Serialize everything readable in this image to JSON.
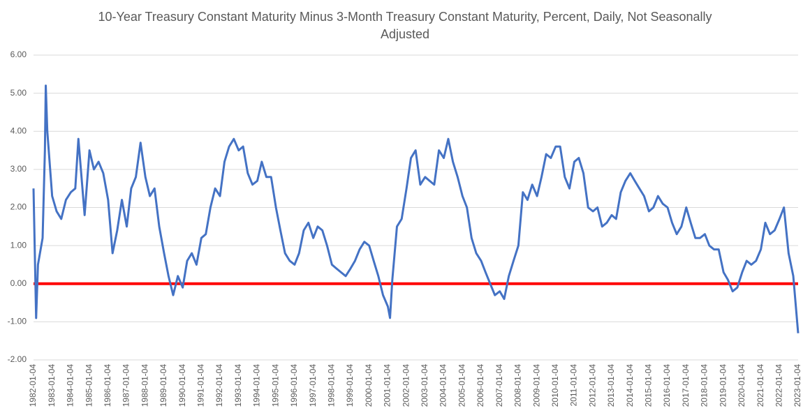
{
  "chart_data": {
    "type": "line",
    "title": "10-Year Treasury Constant Maturity Minus 3-Month Treasury Constant Maturity, Percent, Daily, Not Seasonally Adjusted",
    "x": [
      "1982-01-04",
      "1982-02-24",
      "1982-04-01",
      "1982-07-01",
      "1982-08-15",
      "1982-09-01",
      "1982-10-01",
      "1983-01-04",
      "1983-04-01",
      "1983-07-01",
      "1983-10-01",
      "1984-01-04",
      "1984-04-01",
      "1984-06-01",
      "1984-10-01",
      "1985-01-04",
      "1985-04-01",
      "1985-07-01",
      "1985-10-01",
      "1986-01-04",
      "1986-04-01",
      "1986-07-01",
      "1986-10-01",
      "1987-01-04",
      "1987-04-01",
      "1987-07-01",
      "1987-10-01",
      "1988-01-04",
      "1988-04-01",
      "1988-07-01",
      "1988-10-01",
      "1989-01-04",
      "1989-04-01",
      "1989-07-01",
      "1989-10-01",
      "1990-01-04",
      "1990-04-01",
      "1990-07-01",
      "1990-10-01",
      "1991-01-04",
      "1991-04-01",
      "1991-07-01",
      "1991-10-01",
      "1992-01-04",
      "1992-04-01",
      "1992-07-01",
      "1992-10-01",
      "1993-01-04",
      "1993-04-01",
      "1993-07-01",
      "1993-10-01",
      "1994-01-04",
      "1994-04-01",
      "1994-07-01",
      "1994-10-01",
      "1995-01-04",
      "1995-04-01",
      "1995-07-01",
      "1995-10-01",
      "1996-01-04",
      "1996-04-01",
      "1996-07-01",
      "1996-10-01",
      "1997-01-04",
      "1997-04-01",
      "1997-07-01",
      "1997-10-01",
      "1998-01-04",
      "1998-04-01",
      "1998-07-01",
      "1998-10-01",
      "1999-01-04",
      "1999-04-01",
      "1999-07-01",
      "1999-10-01",
      "2000-01-04",
      "2000-04-01",
      "2000-07-01",
      "2000-10-01",
      "2001-01-04",
      "2001-02-15",
      "2001-04-01",
      "2001-07-01",
      "2001-10-01",
      "2002-01-04",
      "2002-04-01",
      "2002-07-01",
      "2002-10-01",
      "2003-01-04",
      "2003-04-01",
      "2003-07-01",
      "2003-10-01",
      "2004-01-04",
      "2004-04-01",
      "2004-07-01",
      "2004-10-01",
      "2005-01-04",
      "2005-04-01",
      "2005-07-01",
      "2005-10-01",
      "2006-01-04",
      "2006-04-01",
      "2006-07-01",
      "2006-10-01",
      "2007-01-04",
      "2007-04-01",
      "2007-07-01",
      "2007-10-01",
      "2008-01-04",
      "2008-04-01",
      "2008-07-01",
      "2008-10-01",
      "2009-01-04",
      "2009-04-01",
      "2009-07-01",
      "2009-10-01",
      "2010-01-04",
      "2010-04-01",
      "2010-07-01",
      "2010-10-01",
      "2011-01-04",
      "2011-04-01",
      "2011-07-01",
      "2011-10-01",
      "2012-01-04",
      "2012-04-01",
      "2012-07-01",
      "2012-10-01",
      "2013-01-04",
      "2013-04-01",
      "2013-07-01",
      "2013-10-01",
      "2014-01-04",
      "2014-04-01",
      "2014-07-01",
      "2014-10-01",
      "2015-01-04",
      "2015-04-01",
      "2015-07-01",
      "2015-10-01",
      "2016-01-04",
      "2016-04-01",
      "2016-07-01",
      "2016-10-01",
      "2017-01-04",
      "2017-04-01",
      "2017-07-01",
      "2017-10-01",
      "2018-01-04",
      "2018-04-01",
      "2018-07-01",
      "2018-10-01",
      "2019-01-04",
      "2019-04-01",
      "2019-07-01",
      "2019-10-01",
      "2020-01-04",
      "2020-04-01",
      "2020-07-01",
      "2020-10-01",
      "2021-01-04",
      "2021-04-01",
      "2021-07-01",
      "2021-10-01",
      "2022-01-04",
      "2022-04-01",
      "2022-07-01",
      "2022-10-01",
      "2023-01-04"
    ],
    "series": [
      {
        "color": "#4472c4",
        "values": [
          2.5,
          -0.9,
          0.5,
          1.2,
          3.5,
          5.2,
          4.0,
          2.3,
          1.9,
          1.7,
          2.2,
          2.4,
          2.5,
          3.8,
          1.8,
          3.5,
          3.0,
          3.2,
          2.9,
          2.2,
          0.8,
          1.4,
          2.2,
          1.5,
          2.5,
          2.8,
          3.7,
          2.8,
          2.3,
          2.5,
          1.5,
          0.8,
          0.2,
          -0.3,
          0.2,
          -0.1,
          0.6,
          0.8,
          0.5,
          1.2,
          1.3,
          2.0,
          2.5,
          2.3,
          3.2,
          3.6,
          3.8,
          3.5,
          3.6,
          2.9,
          2.6,
          2.7,
          3.2,
          2.8,
          2.8,
          2.0,
          1.4,
          0.8,
          0.6,
          0.5,
          0.8,
          1.4,
          1.6,
          1.2,
          1.5,
          1.4,
          1.0,
          0.5,
          0.4,
          0.3,
          0.2,
          0.4,
          0.6,
          0.9,
          1.1,
          1.0,
          0.6,
          0.2,
          -0.3,
          -0.6,
          -0.9,
          0.1,
          1.5,
          1.7,
          2.5,
          3.3,
          3.5,
          2.6,
          2.8,
          2.7,
          2.6,
          3.5,
          3.3,
          3.8,
          3.2,
          2.8,
          2.3,
          2.0,
          1.2,
          0.8,
          0.6,
          0.3,
          0.0,
          -0.3,
          -0.2,
          -0.4,
          0.2,
          0.6,
          1.0,
          2.4,
          2.2,
          2.6,
          2.3,
          2.8,
          3.4,
          3.3,
          3.6,
          3.6,
          2.8,
          2.5,
          3.2,
          3.3,
          2.9,
          2.0,
          1.9,
          2.0,
          1.5,
          1.6,
          1.8,
          1.7,
          2.4,
          2.7,
          2.9,
          2.7,
          2.5,
          2.3,
          1.9,
          2.0,
          2.3,
          2.1,
          2.0,
          1.6,
          1.3,
          1.5,
          2.0,
          1.6,
          1.2,
          1.2,
          1.3,
          1.0,
          0.9,
          0.9,
          0.3,
          0.1,
          -0.2,
          -0.1,
          0.3,
          0.6,
          0.5,
          0.6,
          0.9,
          1.6,
          1.3,
          1.4,
          1.7,
          2.0,
          0.8,
          0.2,
          -1.3
        ]
      }
    ],
    "reference_line": {
      "value": 0,
      "color": "#ff0000"
    },
    "xlim": [
      "1982-01-04",
      "2023-01-04"
    ],
    "xticks": [
      "1982-01-04",
      "1983-01-04",
      "1984-01-04",
      "1985-01-04",
      "1986-01-04",
      "1987-01-04",
      "1988-01-04",
      "1989-01-04",
      "1990-01-04",
      "1991-01-04",
      "1992-01-04",
      "1993-01-04",
      "1994-01-04",
      "1995-01-04",
      "1996-01-04",
      "1997-01-04",
      "1998-01-04",
      "1999-01-04",
      "2000-01-04",
      "2001-01-04",
      "2002-01-04",
      "2003-01-04",
      "2004-01-04",
      "2005-01-04",
      "2006-01-04",
      "2007-01-04",
      "2008-01-04",
      "2009-01-04",
      "2010-01-04",
      "2011-01-04",
      "2012-01-04",
      "2013-01-04",
      "2014-01-04",
      "2015-01-04",
      "2016-01-04",
      "2017-01-04",
      "2018-01-04",
      "2019-01-04",
      "2020-01-04",
      "2021-01-04",
      "2022-01-04",
      "2023-01-04"
    ],
    "ylim": [
      -2,
      6
    ],
    "yticks": [
      {
        "value": -2,
        "label": "-2.00"
      },
      {
        "value": -1,
        "label": "-1.00"
      },
      {
        "value": 0,
        "label": "0.00"
      },
      {
        "value": 1,
        "label": "1.00"
      },
      {
        "value": 2,
        "label": "2.00"
      },
      {
        "value": 3,
        "label": "3.00"
      },
      {
        "value": 4,
        "label": "4.00"
      },
      {
        "value": 5,
        "label": "5.00"
      },
      {
        "value": 6,
        "label": "6.00"
      }
    ],
    "grid": true
  }
}
